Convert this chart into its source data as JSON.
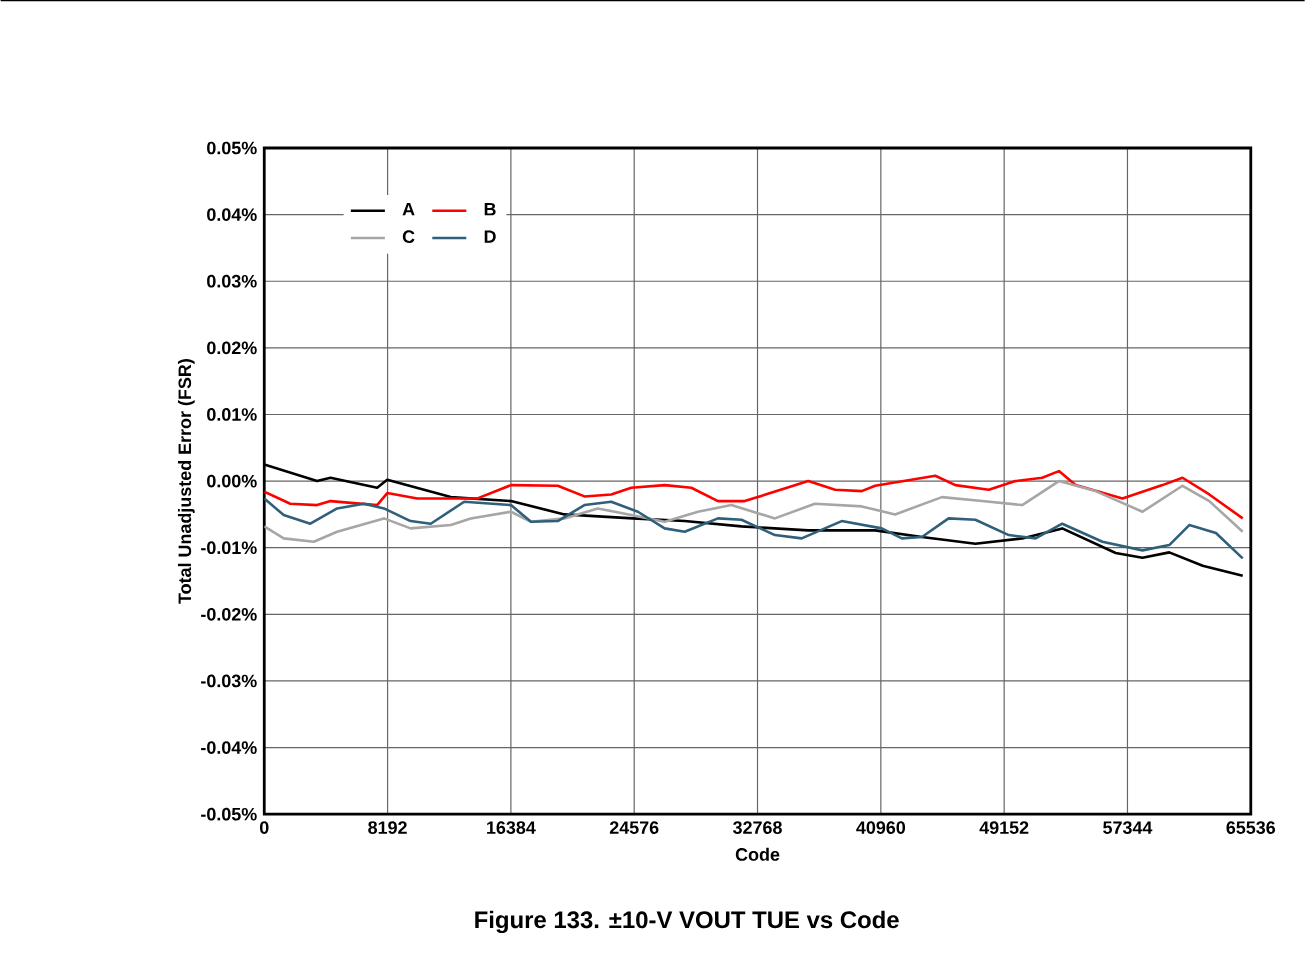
{
  "chart_data": {
    "type": "line",
    "title": "Figure 133. ±10-V VOUT TUE vs Code",
    "xlabel": "Code",
    "ylabel": "Total Unadjusted Error (FSR)",
    "xlim": [
      0,
      65536
    ],
    "xticks": [
      0,
      8192,
      16384,
      24576,
      32768,
      40960,
      49152,
      57344,
      65536
    ],
    "ylim": [
      -0.05,
      0.05
    ],
    "yticks": [
      {
        "value": -0.05,
        "label": "-0.05%"
      },
      {
        "value": -0.04,
        "label": "-0.04%"
      },
      {
        "value": -0.03,
        "label": "-0.03%"
      },
      {
        "value": -0.02,
        "label": "-0.02%"
      },
      {
        "value": -0.01,
        "label": "-0.01%"
      },
      {
        "value": 0,
        "label": "0.00%"
      },
      {
        "value": 0.01,
        "label": "0.01%"
      },
      {
        "value": 0.02,
        "label": "0.02%"
      },
      {
        "value": 0.03,
        "label": "0.03%"
      },
      {
        "value": 0.04,
        "label": "0.04%"
      },
      {
        "value": 0.05,
        "label": "0.05%"
      }
    ],
    "grid": true,
    "legend": "top left",
    "marker": "none",
    "line_style": "solid",
    "series": [
      {
        "name": "A",
        "color": "#000000",
        "x": [
          0,
          3510,
          4400,
          7500,
          8170,
          12390,
          16390,
          19940,
          24470,
          27930,
          31700,
          36140,
          40580,
          43690,
          47240,
          50350,
          53010,
          56560,
          58340,
          60120,
          62340,
          65000
        ],
        "values": [
          0.0025,
          0.0,
          0.0005,
          -0.001,
          0.0002,
          -0.0024,
          -0.003,
          -0.005,
          -0.0056,
          -0.006,
          -0.0068,
          -0.0074,
          -0.0074,
          -0.0084,
          -0.0094,
          -0.0086,
          -0.0071,
          -0.0108,
          -0.0115,
          -0.0107,
          -0.0127,
          -0.0142
        ]
      },
      {
        "name": "B",
        "color": "#ff0000",
        "x": [
          0,
          1730,
          3510,
          4400,
          7500,
          8170,
          10170,
          14170,
          16390,
          19500,
          21270,
          23050,
          24380,
          26600,
          28370,
          30140,
          31920,
          36140,
          37920,
          39690,
          40580,
          44580,
          45910,
          48130,
          49900,
          51680,
          52790,
          53900,
          57010,
          59670,
          61000,
          62780,
          65000
        ],
        "values": [
          -0.0016,
          -0.0034,
          -0.0036,
          -0.003,
          -0.0036,
          -0.0018,
          -0.0026,
          -0.0026,
          -0.0006,
          -0.0007,
          -0.0023,
          -0.002,
          -0.001,
          -0.0006,
          -0.001,
          -0.003,
          -0.003,
          0.0,
          -0.0013,
          -0.0015,
          -0.0007,
          0.0008,
          -0.0006,
          -0.0013,
          0.0,
          0.0005,
          0.0015,
          -0.0006,
          -0.0026,
          -0.0006,
          0.0005,
          -0.002,
          -0.0056
        ]
      },
      {
        "name": "C",
        "color": "#a6a6a6",
        "x": [
          0,
          1290,
          3290,
          4840,
          7950,
          9720,
          12390,
          13720,
          16390,
          17720,
          19940,
          22160,
          24380,
          26600,
          28810,
          31030,
          33920,
          36580,
          39690,
          41910,
          45020,
          47680,
          50350,
          52790,
          55230,
          58340,
          61000,
          62780,
          65000
        ],
        "values": [
          -0.0068,
          -0.0086,
          -0.0091,
          -0.0076,
          -0.0056,
          -0.0071,
          -0.0066,
          -0.0056,
          -0.0046,
          -0.0061,
          -0.0056,
          -0.0041,
          -0.0051,
          -0.0061,
          -0.0046,
          -0.0036,
          -0.0056,
          -0.0034,
          -0.0038,
          -0.005,
          -0.0024,
          -0.003,
          -0.0036,
          0.0,
          -0.0015,
          -0.0046,
          -0.0007,
          -0.003,
          -0.0076
        ]
      },
      {
        "name": "D",
        "color": "#2f5f7a",
        "x": [
          0,
          1290,
          3060,
          4840,
          6620,
          7950,
          9720,
          11060,
          13280,
          16390,
          17720,
          19500,
          21270,
          23050,
          24820,
          26600,
          27930,
          30140,
          31700,
          33920,
          35700,
          38360,
          41020,
          42360,
          43690,
          45460,
          47240,
          49460,
          51240,
          53010,
          55680,
          58340,
          60120,
          61450,
          63220,
          65000
        ],
        "values": [
          -0.0026,
          -0.0051,
          -0.0064,
          -0.0041,
          -0.0034,
          -0.0041,
          -0.006,
          -0.0064,
          -0.0031,
          -0.0036,
          -0.0061,
          -0.006,
          -0.0036,
          -0.0031,
          -0.0046,
          -0.0071,
          -0.0076,
          -0.0056,
          -0.0058,
          -0.0081,
          -0.0086,
          -0.006,
          -0.0071,
          -0.0086,
          -0.0084,
          -0.0056,
          -0.0058,
          -0.0081,
          -0.0086,
          -0.0064,
          -0.0091,
          -0.0104,
          -0.0096,
          -0.0066,
          -0.0078,
          -0.0116
        ]
      }
    ]
  }
}
